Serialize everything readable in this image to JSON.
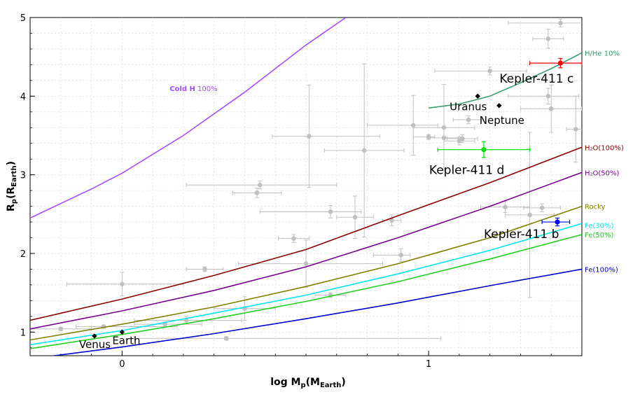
{
  "chart_data": {
    "type": "scatter",
    "xlabel": {
      "main": "log M",
      "sub": "p",
      "unit_main": "(M",
      "unit_sub": "Earth",
      "unit_end": ")"
    },
    "ylabel": {
      "main": "R",
      "sub": "p",
      "unit_main": "(R",
      "unit_sub": "Earth",
      "unit_end": ")"
    },
    "xlim": [
      -0.3,
      1.5
    ],
    "ylim": [
      0.7,
      5.0
    ],
    "xticks": [
      {
        "v": 0,
        "label": "0"
      },
      {
        "v": 1,
        "label": "1"
      }
    ],
    "yticks": [
      {
        "v": 1,
        "label": "1"
      },
      {
        "v": 2,
        "label": "2"
      },
      {
        "v": 3,
        "label": "3"
      },
      {
        "v": 4,
        "label": "4"
      },
      {
        "v": 5,
        "label": "5"
      }
    ],
    "grid": true,
    "composition_curves": [
      {
        "name": "H/He 10%",
        "color": "#3a9d6e",
        "x": [
          1.0,
          1.1,
          1.2,
          1.3,
          1.4,
          1.5
        ],
        "y": [
          3.85,
          3.9,
          4.0,
          4.17,
          4.35,
          4.55
        ],
        "label_y": 4.55
      },
      {
        "name": "H₂O(100%)",
        "color": "#8b0000",
        "x": [
          -0.3,
          0.0,
          0.3,
          0.6,
          0.9,
          1.2,
          1.5
        ],
        "y": [
          1.15,
          1.42,
          1.72,
          2.05,
          2.48,
          2.9,
          3.35
        ],
        "label_y": 3.35
      },
      {
        "name": "H₂O(50%)",
        "color": "#7a0090",
        "x": [
          -0.3,
          0.0,
          0.3,
          0.6,
          0.9,
          1.2,
          1.5
        ],
        "y": [
          1.04,
          1.27,
          1.53,
          1.83,
          2.2,
          2.6,
          3.03
        ],
        "label_y": 3.03
      },
      {
        "name": "Rocky",
        "color": "#808000",
        "x": [
          -0.3,
          0.0,
          0.3,
          0.6,
          0.9,
          1.2,
          1.5
        ],
        "y": [
          0.9,
          1.1,
          1.32,
          1.58,
          1.87,
          2.2,
          2.6
        ],
        "label_y": 2.6
      },
      {
        "name": "Fe(30%)",
        "color": "#00e5ee",
        "x": [
          -0.3,
          0.0,
          0.3,
          0.6,
          0.9,
          1.2,
          1.5
        ],
        "y": [
          0.84,
          1.02,
          1.24,
          1.47,
          1.74,
          2.04,
          2.38
        ],
        "label_y": 2.36
      },
      {
        "name": "Fe(50%)",
        "color": "#20d020",
        "x": [
          -0.3,
          0.0,
          0.3,
          0.6,
          0.9,
          1.2,
          1.5
        ],
        "y": [
          0.79,
          0.97,
          1.17,
          1.39,
          1.64,
          1.93,
          2.24
        ],
        "label_y": 2.24
      },
      {
        "name": "Fe(100%)",
        "color": "#0000cd",
        "x": [
          -0.3,
          0.0,
          0.3,
          0.6,
          0.9,
          1.2,
          1.5
        ],
        "y": [
          0.66,
          0.81,
          0.98,
          1.17,
          1.37,
          1.59,
          1.8
        ],
        "label_y": 1.8
      }
    ],
    "cold_h": {
      "label_bold": "Cold H",
      "label_rest": " 100%",
      "color": "#a64dff",
      "x": [
        -0.3,
        -0.1,
        0.0,
        0.2,
        0.4,
        0.6,
        0.73
      ],
      "y": [
        2.45,
        2.82,
        3.02,
        3.5,
        4.05,
        4.65,
        5.0
      ],
      "label_x": 0.155,
      "label_y": 4.1
    },
    "background_planets": {
      "color": "#c0c0c0",
      "points": [
        {
          "x": -0.2,
          "y": 1.04,
          "xerr": [
            0.13,
            0.1
          ],
          "yerr": 0.02
        },
        {
          "x": -0.06,
          "y": 1.07,
          "xerr": [
            0.09,
            0.24
          ],
          "yerr": 0.02
        },
        {
          "x": 0.0,
          "y": 1.61,
          "xerr": [
            0.18,
            0.2
          ],
          "yerr": 0.15
        },
        {
          "x": 0.14,
          "y": 1.1,
          "xerr": [
            0.1,
            0.12
          ],
          "yerr": 0.03
        },
        {
          "x": 0.21,
          "y": 1.15,
          "xerr": [
            0.17,
            0.18
          ],
          "yerr": 0.05
        },
        {
          "x": 0.27,
          "y": 1.8,
          "xerr": [
            0.06,
            0.06
          ],
          "yerr": 0.03
        },
        {
          "x": 0.34,
          "y": 0.92,
          "xerr": [
            0.3,
            0.7
          ],
          "yerr": 0.02
        },
        {
          "x": 0.4,
          "y": 1.3,
          "xerr": [
            0.1,
            0.1
          ],
          "yerr": 0.15
        },
        {
          "x": 0.45,
          "y": 2.87,
          "xerr": [
            0.24,
            0.25
          ],
          "yerr": 0.05
        },
        {
          "x": 0.44,
          "y": 2.77,
          "xerr": [
            0.08,
            0.08
          ],
          "yerr": 0.06
        },
        {
          "x": 0.56,
          "y": 2.19,
          "xerr": [
            0.05,
            0.05
          ],
          "yerr": 0.05
        },
        {
          "x": 0.6,
          "y": 1.87,
          "xerr": [
            0.22,
            0.25
          ],
          "yerr": 0.3
        },
        {
          "x": 0.61,
          "y": 3.49,
          "xerr": [
            0.12,
            0.23
          ],
          "yerr": 0.65
        },
        {
          "x": 0.68,
          "y": 1.47,
          "xerr": [
            0.05,
            0.05
          ],
          "yerr": 0.03
        },
        {
          "x": 0.68,
          "y": 2.53,
          "xerr": [
            0.23,
            0.1
          ],
          "yerr": 0.08
        },
        {
          "x": 0.76,
          "y": 2.46,
          "xerr": [
            0.06,
            0.06
          ],
          "yerr": 0.27
        },
        {
          "x": 0.79,
          "y": 3.31,
          "xerr": [
            0.13,
            0.13
          ],
          "yerr": 1.1
        },
        {
          "x": 0.88,
          "y": 2.42,
          "xerr": [
            0.03,
            0.03
          ],
          "yerr": 0.07
        },
        {
          "x": 0.91,
          "y": 1.98,
          "xerr": [
            0.09,
            0.03
          ],
          "yerr": 0.08
        },
        {
          "x": 0.95,
          "y": 3.63,
          "xerr": [
            0.15,
            0.08
          ],
          "yerr": 0.38
        },
        {
          "x": 1.0,
          "y": 3.48,
          "xerr": [
            0.05,
            0.02
          ],
          "yerr": 0.03
        },
        {
          "x": 1.05,
          "y": 3.47,
          "xerr": [
            0.05,
            0.05
          ],
          "yerr": 0.4
        },
        {
          "x": 1.05,
          "y": 3.6,
          "xerr": [
            0.1,
            0.1
          ],
          "yerr": 0.55
        },
        {
          "x": 1.1,
          "y": 3.43,
          "xerr": [
            0.05,
            0.05
          ],
          "yerr": 0.05
        },
        {
          "x": 1.11,
          "y": 3.46,
          "xerr": [
            0.05,
            0.05
          ],
          "yerr": 0.05
        },
        {
          "x": 1.13,
          "y": 3.7,
          "xerr": [
            0.05,
            0.05
          ],
          "yerr": 0.05
        },
        {
          "x": 1.2,
          "y": 4.32,
          "xerr": [
            0.18,
            0.12
          ],
          "yerr": 0.05
        },
        {
          "x": 1.25,
          "y": 2.59,
          "xerr": [
            0.08,
            0.08
          ],
          "yerr": 0.07
        },
        {
          "x": 1.33,
          "y": 2.49,
          "xerr": [
            0.08,
            0.08
          ],
          "yerr": 1.05
        },
        {
          "x": 1.37,
          "y": 2.58,
          "xerr": [
            0.06,
            0.06
          ],
          "yerr": 0.05
        },
        {
          "x": 1.39,
          "y": 4.0,
          "xerr": [
            0.13,
            0.1
          ],
          "yerr": 0.1
        },
        {
          "x": 1.39,
          "y": 4.73,
          "xerr": [
            0.05,
            0.05
          ],
          "yerr": 0.12
        },
        {
          "x": 1.4,
          "y": 3.84,
          "xerr": [
            0.1,
            0.1
          ],
          "yerr": 0.3
        },
        {
          "x": 1.43,
          "y": 4.93,
          "xerr": [
            0.17,
            0.1
          ],
          "yerr": 0.05
        },
        {
          "x": 1.48,
          "y": 3.58,
          "xerr": [
            0.03,
            0.03
          ],
          "yerr": 0.42
        }
      ]
    },
    "solar_system": [
      {
        "name": "Venus",
        "x": -0.09,
        "y": 0.95
      },
      {
        "name": "Earth",
        "x": 0.0,
        "y": 1.0
      },
      {
        "name": "Uranus",
        "x": 1.16,
        "y": 4.0
      },
      {
        "name": "Neptune",
        "x": 1.23,
        "y": 3.88
      }
    ],
    "highlighted_planets": [
      {
        "name": "Kepler-411 b",
        "color": "#0000ff",
        "x": 1.42,
        "y": 2.4,
        "xerr": [
          0.05,
          0.04
        ],
        "yerr": 0.05
      },
      {
        "name": "Kepler-411 c",
        "color": "#ff0000",
        "x": 1.43,
        "y": 4.42,
        "xerr": [
          0.1,
          0.07
        ],
        "yerr": 0.06
      },
      {
        "name": "Kepler-411 d",
        "color": "#00dd00",
        "x": 1.18,
        "y": 3.32,
        "xerr": [
          0.15,
          0.15
        ],
        "yerr": 0.1
      }
    ]
  }
}
